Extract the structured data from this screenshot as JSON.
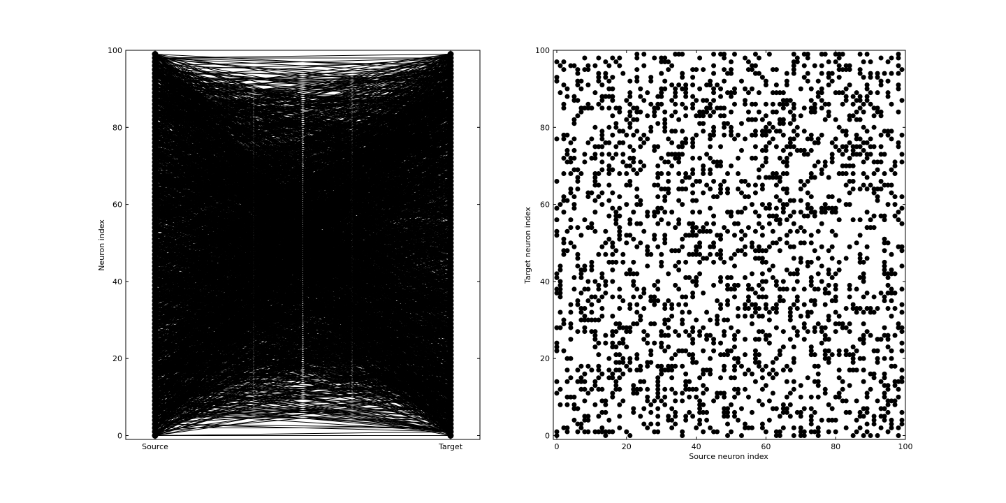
{
  "chart_data": [
    {
      "type": "line",
      "chart_kind": "connectivity-lines",
      "title": "",
      "xlabel": "",
      "ylabel": "Neuron index",
      "categories": [
        "Source",
        "Target"
      ],
      "yticks": [
        "0",
        "20",
        "40",
        "60",
        "80",
        "100"
      ],
      "ylim": [
        -1,
        100
      ],
      "n_neurons": 100,
      "connection_probability": 0.2,
      "random_seed": 7,
      "grid": false,
      "legend": "none",
      "line_color": "#000000",
      "marker_color": "#000000"
    },
    {
      "type": "scatter",
      "title": "",
      "xlabel": "Source neuron index",
      "ylabel": "Target neuron index",
      "xticks": [
        "0",
        "20",
        "40",
        "60",
        "80",
        "100"
      ],
      "yticks": [
        "0",
        "20",
        "40",
        "60",
        "80",
        "100"
      ],
      "xlim": [
        -1,
        100
      ],
      "ylim": [
        -1,
        100
      ],
      "n_neurons": 100,
      "connection_probability": 0.2,
      "random_seed": 7,
      "grid": false,
      "legend": "none",
      "marker_color": "#000000"
    }
  ]
}
